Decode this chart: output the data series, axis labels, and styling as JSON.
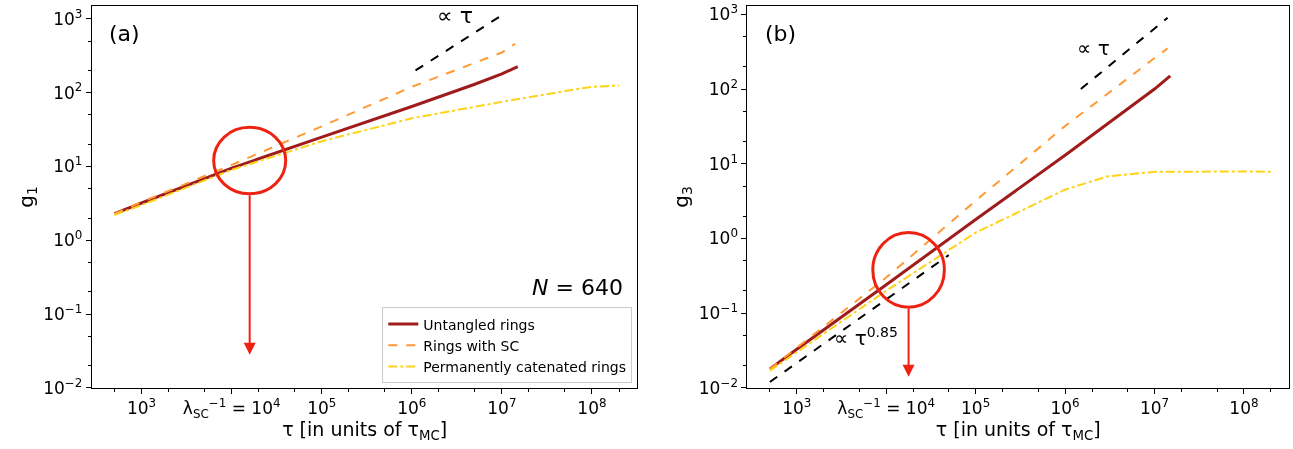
{
  "chart_data": [
    {
      "type": "line",
      "log": "xy",
      "title": "(a)",
      "xlabel": "τ [in units of τ$_{MC}$]",
      "ylabel": "g$_{1}$",
      "xlim": [
        280,
        320000000
      ],
      "ylim": [
        0.01,
        1500
      ],
      "xticks": [
        {
          "value": 1000,
          "label": "10$^{3}$"
        },
        {
          "value": 10000,
          "label": "λ$_{SC}$$^{−1}$ = 10$^{4}$"
        },
        {
          "value": 100000,
          "label": "10$^{5}$"
        },
        {
          "value": 1000000,
          "label": "10$^{6}$"
        },
        {
          "value": 10000000,
          "label": "10$^{7}$"
        },
        {
          "value": 100000000,
          "label": "10$^{8}$"
        }
      ],
      "yticks": [
        {
          "value": 0.01,
          "label": "10$^{−2}$"
        },
        {
          "value": 0.1,
          "label": "10$^{−1}$"
        },
        {
          "value": 1,
          "label": "10$^{0}$"
        },
        {
          "value": 10,
          "label": "10$^{1}$"
        },
        {
          "value": 100,
          "label": "10$^{2}$"
        },
        {
          "value": 1000,
          "label": "10$^{3}$"
        }
      ],
      "legend": "bottom right",
      "marker": "none",
      "series": [
        {
          "name": "Untangled rings",
          "color": "#a01c1c",
          "line_style": "solid",
          "x": [
            500,
            1000,
            10000,
            100000,
            1000000,
            5000000,
            10000000,
            15000000
          ],
          "values": [
            2.3,
            3.2,
            9.5,
            25,
            65,
            130,
            180,
            225
          ]
        },
        {
          "name": "Rings with SC",
          "color": "#ff9933",
          "line_style": "dashed",
          "x": [
            500,
            1000,
            10000,
            100000,
            1000000,
            10000000,
            14000000
          ],
          "values": [
            2.3,
            3.3,
            10.5,
            35,
            120,
            350,
            460
          ]
        },
        {
          "name": "Permanently catenated rings",
          "color": "#ffd21a",
          "line_style": "dashdot",
          "x": [
            500,
            1000,
            10000,
            100000,
            1000000,
            10000000,
            50000000,
            100000000,
            200000000
          ],
          "values": [
            2.2,
            3.0,
            9,
            22,
            45,
            75,
            105,
            120,
            125
          ]
        },
        {
          "color": "#000000",
          "line_style": "dashed",
          "x": [
            1100000,
            10000000
          ],
          "values": [
            200,
            1120
          ]
        }
      ],
      "annotations": [
        "∝ τ",
        "N = 640"
      ]
    },
    {
      "type": "line",
      "log": "xy",
      "title": "(b)",
      "xlabel": "τ [in units of τ$_{MC}$]",
      "ylabel": "g$_{3}$",
      "xlim": [
        280,
        320000000
      ],
      "ylim": [
        0.01,
        1300
      ],
      "xticks": [
        {
          "value": 1000,
          "label": "10$^{3}$"
        },
        {
          "value": 10000,
          "label": "λ$_{SC}$$^{−1}$ = 10$^{4}$"
        },
        {
          "value": 100000,
          "label": "10$^{5}$"
        },
        {
          "value": 1000000,
          "label": "10$^{6}$"
        },
        {
          "value": 10000000,
          "label": "10$^{7}$"
        },
        {
          "value": 100000000,
          "label": "10$^{8}$"
        }
      ],
      "yticks": [
        {
          "value": 0.01,
          "label": "10$^{−2}$"
        },
        {
          "value": 0.1,
          "label": "10$^{−1}$"
        },
        {
          "value": 1,
          "label": "10$^{0}$"
        },
        {
          "value": 10,
          "label": "10$^{1}$"
        },
        {
          "value": 100,
          "label": "10$^{2}$"
        },
        {
          "value": 1000,
          "label": "10$^{3}$"
        }
      ],
      "marker": "none",
      "series": [
        {
          "color": "#a01c1c",
          "line_style": "solid",
          "x": [
            500,
            1000,
            10000,
            100000,
            1000000,
            10000000,
            15000000
          ],
          "values": [
            0.018,
            0.033,
            0.24,
            1.8,
            13,
            100,
            150
          ]
        },
        {
          "color": "#ff9933",
          "line_style": "dashed",
          "x": [
            500,
            10000,
            100000,
            1000000,
            10000000,
            14000000
          ],
          "values": [
            0.018,
            0.3,
            3.2,
            32,
            260,
            350
          ]
        },
        {
          "color": "#ffd21a",
          "line_style": "dashdot",
          "x": [
            500,
            10000,
            100000,
            1000000,
            3000000,
            10000000,
            100000000,
            200000000
          ],
          "values": [
            0.017,
            0.2,
            1.2,
            4.5,
            6.8,
            7.8,
            7.9,
            7.8
          ]
        },
        {
          "color": "#000000",
          "line_style": "dashed",
          "x": [
            1500000,
            14000000
          ],
          "values": [
            100,
            900
          ]
        },
        {
          "color": "#000000",
          "line_style": "dashed",
          "x": [
            500,
            50000
          ],
          "values": [
            0.012,
            0.6
          ]
        }
      ],
      "annotations": [
        "∝ τ",
        "∝ τ$^{0.85}$"
      ]
    }
  ]
}
